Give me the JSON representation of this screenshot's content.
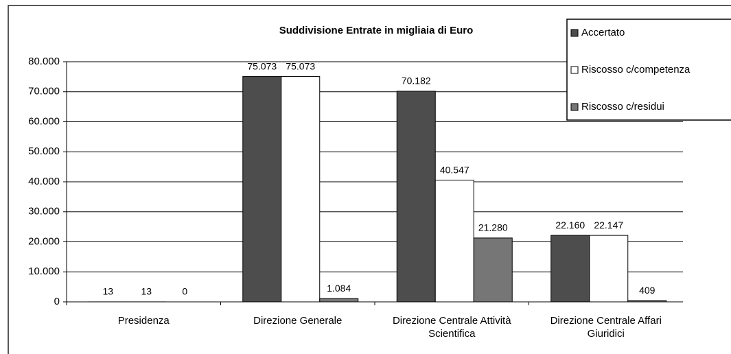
{
  "chart_data": {
    "type": "bar",
    "title": "Suddivisione Entrate in migliaia di Euro",
    "categories": [
      "Presidenza",
      "Direzione Generale",
      "Direzione Centrale Attività Scientifica",
      "Direzione Centrale Affari Giuridici"
    ],
    "series": [
      {
        "name": "Accertato",
        "color": "#4d4d4d",
        "values": [
          13,
          75073,
          70182,
          22160
        ],
        "value_labels": [
          "13",
          "75.073",
          "70.182",
          "22.160"
        ]
      },
      {
        "name": "Riscosso c/competenza",
        "color": "#ffffff",
        "values": [
          13,
          75073,
          40547,
          22147
        ],
        "value_labels": [
          "13",
          "75.073",
          "40.547",
          "22.147"
        ]
      },
      {
        "name": "Riscosso c/residui",
        "color": "#767676",
        "values": [
          0,
          1084,
          21280,
          409
        ],
        "value_labels": [
          "0",
          "1.084",
          "21.280",
          "409"
        ]
      }
    ],
    "ylim": [
      0,
      80000
    ],
    "yticks": [
      0,
      {
        "value": 10000,
        "label": "10.000"
      },
      {
        "value": 20000,
        "label": "20.000"
      },
      {
        "value": 30000,
        "label": "30.000"
      },
      {
        "value": 40000,
        "label": "40.000"
      },
      {
        "value": 50000,
        "label": "50.000"
      },
      {
        "value": 60000,
        "label": "60.000"
      },
      {
        "value": 70000,
        "label": "70.000"
      },
      {
        "value": 80000,
        "label": "80.000"
      }
    ],
    "grid": true,
    "legend": "top-right"
  }
}
